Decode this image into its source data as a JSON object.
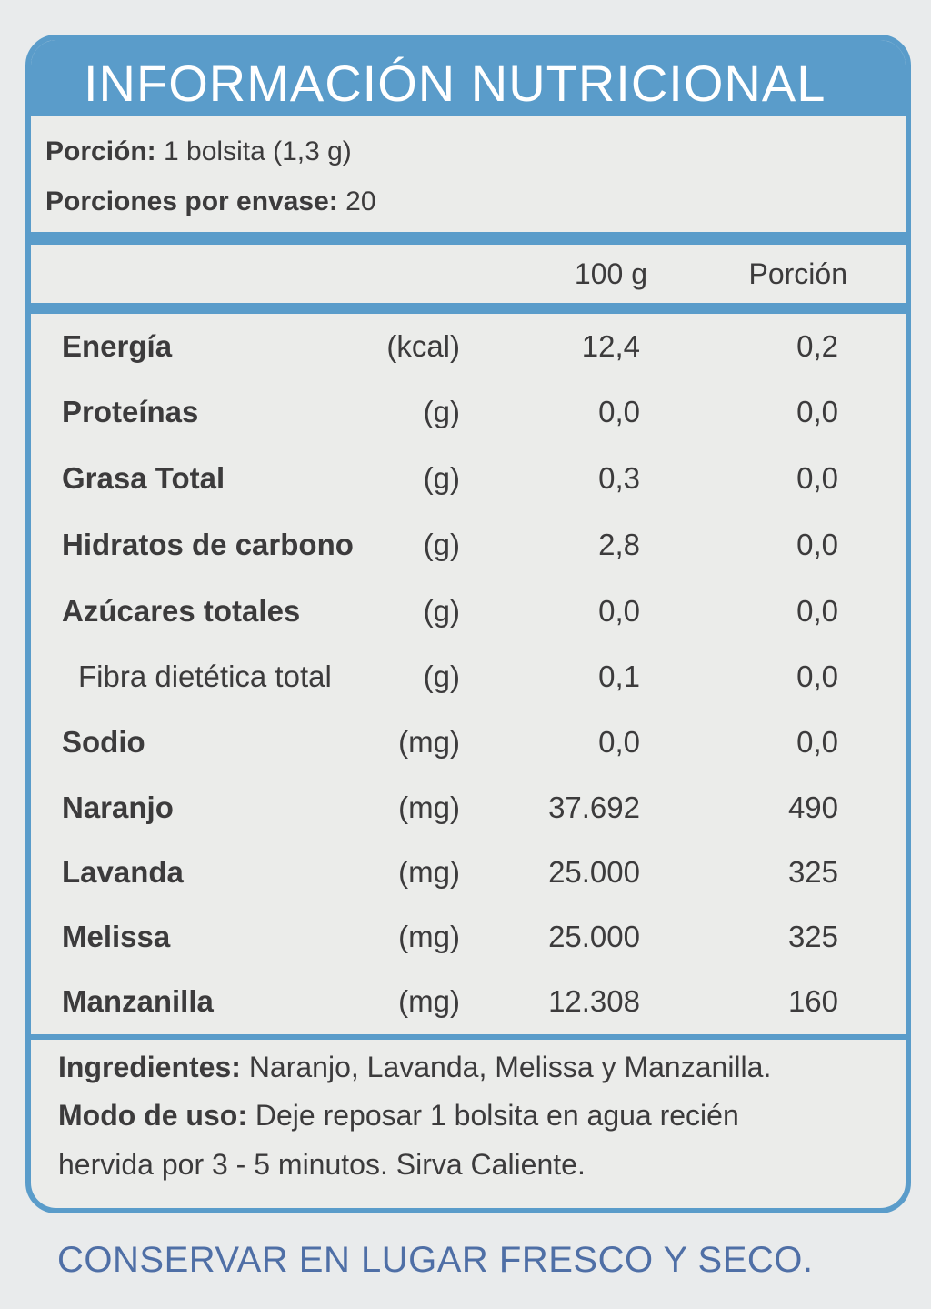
{
  "title": "INFORMACIÓN  NUTRICIONAL",
  "portion": {
    "label": "Porción:",
    "value": "1 bolsita (1,3 g)"
  },
  "servings": {
    "label": "Porciones por envase:",
    "value": "20"
  },
  "columns": {
    "per100": "100 g",
    "portion": "Porción"
  },
  "rows": [
    {
      "name": "Energía",
      "unit": "(kcal)",
      "per100": "12,4",
      "portion": "0,2"
    },
    {
      "name": "Proteínas",
      "unit": "(g)",
      "per100": "0,0",
      "portion": "0,0"
    },
    {
      "name": "Grasa Total",
      "unit": "(g)",
      "per100": "0,3",
      "portion": "0,0"
    },
    {
      "name": "Hidratos de carbono",
      "unit": "(g)",
      "per100": "2,8",
      "portion": "0,0"
    },
    {
      "name": "Azúcares totales",
      "unit": "(g)",
      "per100": "0,0",
      "portion": "0,0"
    },
    {
      "name": "Fibra dietética total",
      "unit": "(g)",
      "per100": "0,1",
      "portion": "0,0"
    },
    {
      "name": "Sodio",
      "unit": "(mg)",
      "per100": "0,0",
      "portion": "0,0"
    },
    {
      "name": "Naranjo",
      "unit": "(mg)",
      "per100": "37.692",
      "portion": "490"
    },
    {
      "name": "Lavanda",
      "unit": "(mg)",
      "per100": "25.000",
      "portion": "325"
    },
    {
      "name": "Melissa",
      "unit": "(mg)",
      "per100": "25.000",
      "portion": "325"
    },
    {
      "name": "Manzanilla",
      "unit": "(mg)",
      "per100": "12.308",
      "portion": "160"
    }
  ],
  "ingredients": {
    "label": "Ingredientes:",
    "text": "Naranjo, Lavanda, Melissa y Manzanilla."
  },
  "usage": {
    "label": "Modo de uso:",
    "line1": "Deje reposar 1 bolsita en agua recién",
    "line2": "hervida por 3 - 5 minutos. Sirva Caliente."
  },
  "storage": "CONSERVAR EN LUGAR FRESCO Y SECO.",
  "colors": {
    "accent": "#5a9cca",
    "background": "#ebecea",
    "text": "#3c3b3c",
    "storage_text": "#4f6fa6"
  }
}
